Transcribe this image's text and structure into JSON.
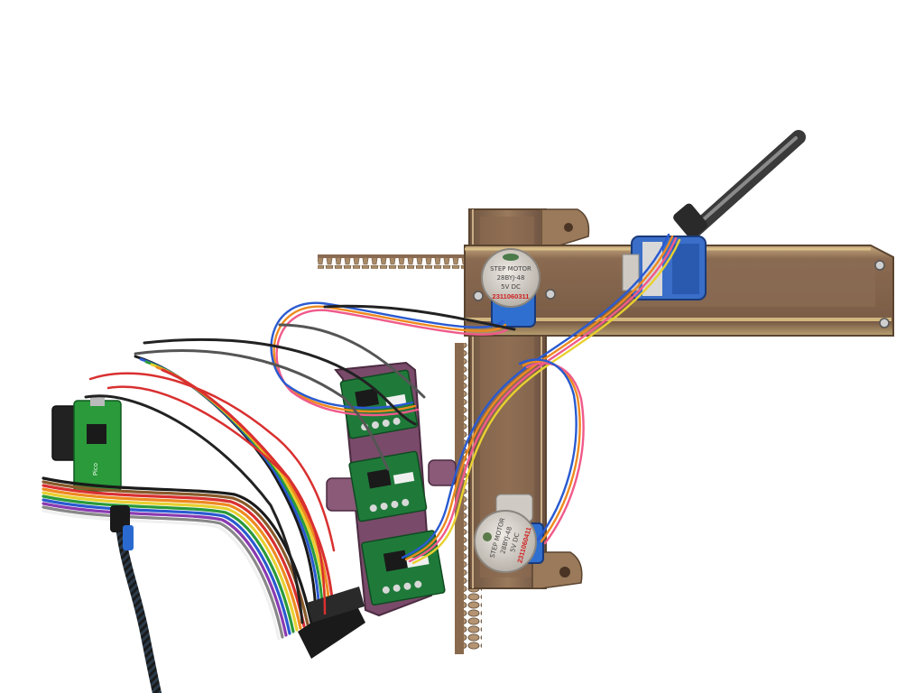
{
  "colors": {
    "background": "#ffffff",
    "frame_bronze": "#8a6a4e",
    "frame_edge": "#b89a78",
    "motor_body": "#cfcbc4",
    "motor_blue": "#2f6fd0",
    "pcb_green": "#1f7a3a",
    "carrier_purple": "#7a4a6a",
    "ribbon_colors": [
      "#1a1a1a",
      "#8a5a2a",
      "#d93030",
      "#ee8a20",
      "#e8d030",
      "#2a9a3a",
      "#2a5ad0",
      "#8a3ab0",
      "#888888",
      "#f0f0f0"
    ]
  },
  "motor_top": {
    "label_line1": "STEP MOTOR",
    "label_line2": "28BYJ-48",
    "label_line3": "5V DC",
    "serial": "2311060311"
  },
  "motor_bottom": {
    "label_line1": "STEP MOTOR",
    "label_line2": "28BYJ-48",
    "label_line3": "5V DC",
    "serial": "2311060411"
  },
  "microcontroller": {
    "board_mark": "Pico"
  }
}
